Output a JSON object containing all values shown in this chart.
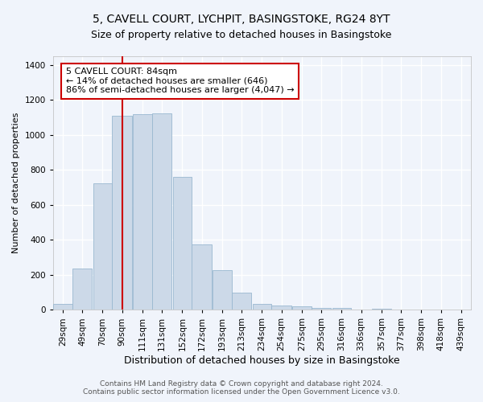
{
  "title_line1": "5, CAVELL COURT, LYCHPIT, BASINGSTOKE, RG24 8YT",
  "title_line2": "Size of property relative to detached houses in Basingstoke",
  "xlabel": "Distribution of detached houses by size in Basingstoke",
  "ylabel": "Number of detached properties",
  "footer_line1": "Contains HM Land Registry data © Crown copyright and database right 2024.",
  "footer_line2": "Contains public sector information licensed under the Open Government Licence v3.0.",
  "bar_labels": [
    "29sqm",
    "49sqm",
    "70sqm",
    "90sqm",
    "111sqm",
    "131sqm",
    "152sqm",
    "172sqm",
    "193sqm",
    "213sqm",
    "234sqm",
    "254sqm",
    "275sqm",
    "295sqm",
    "316sqm",
    "336sqm",
    "357sqm",
    "377sqm",
    "398sqm",
    "418sqm",
    "439sqm"
  ],
  "bar_values": [
    35,
    235,
    725,
    1110,
    1120,
    1125,
    760,
    375,
    225,
    100,
    35,
    25,
    20,
    12,
    10,
    0,
    8,
    0,
    0,
    0,
    0
  ],
  "bar_color": "#ccd9e8",
  "bar_edge_color": "#9ab8d0",
  "annotation_text": "5 CAVELL COURT: 84sqm\n← 14% of detached houses are smaller (646)\n86% of semi-detached houses are larger (4,047) →",
  "annotation_box_color": "#ffffff",
  "annotation_box_edge_color": "#cc0000",
  "vline_x": 90,
  "vline_color": "#cc0000",
  "ylim": [
    0,
    1450
  ],
  "xlim_left": 19,
  "xlim_right": 449,
  "bg_color": "#f0f4fb",
  "grid_color": "#ffffff",
  "title1_fontsize": 10,
  "title2_fontsize": 9,
  "xlabel_fontsize": 9,
  "ylabel_fontsize": 8,
  "tick_fontsize": 7.5,
  "annotation_fontsize": 8,
  "footer_fontsize": 6.5
}
